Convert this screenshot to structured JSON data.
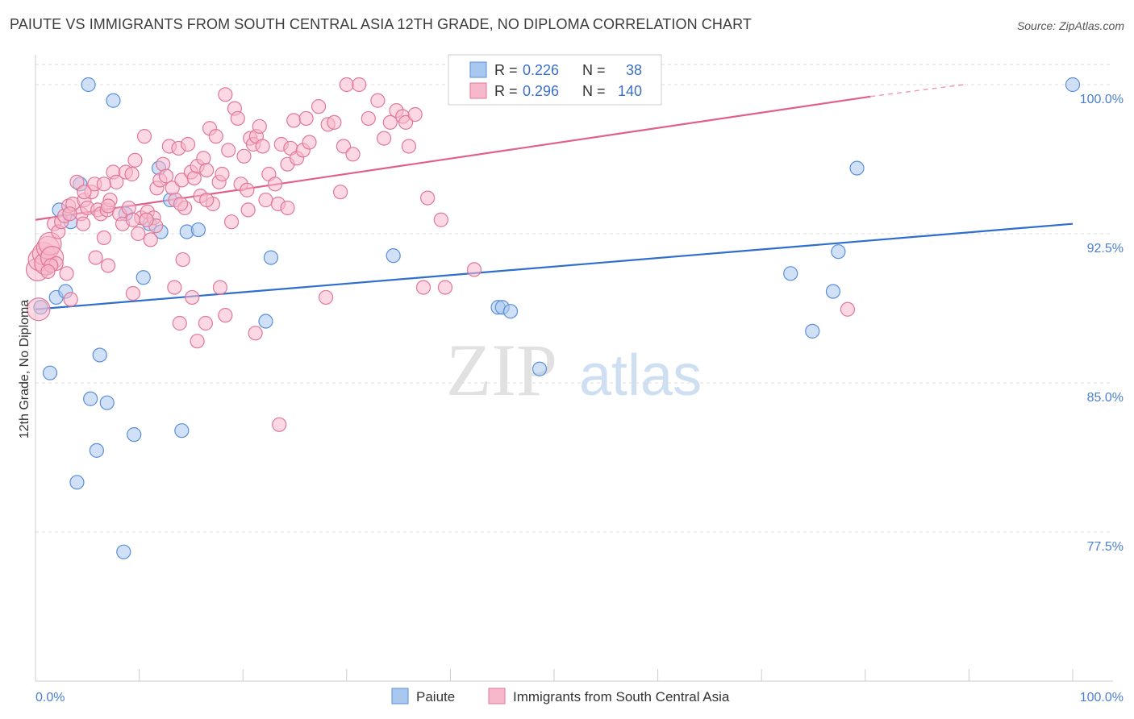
{
  "title": "PAIUTE VS IMMIGRANTS FROM SOUTH CENTRAL ASIA 12TH GRADE, NO DIPLOMA CORRELATION CHART",
  "source": "Source: ZipAtlas.com",
  "watermark": {
    "zip": "ZIP",
    "atlas": "atlas"
  },
  "legend": {
    "r_label": "R =",
    "n_label": "N =",
    "rows": [
      {
        "r": "0.226",
        "n": "38",
        "color": "#a9c8f0",
        "stroke": "#5b8fd6"
      },
      {
        "r": "0.296",
        "n": "140",
        "color": "#f8b8cc",
        "stroke": "#e07898"
      }
    ]
  },
  "bottom_legend": [
    "Paiute",
    "Immigrants from South Central Asia"
  ],
  "chart_data": {
    "type": "scatter",
    "title": "PAIUTE VS IMMIGRANTS FROM SOUTH CENTRAL ASIA 12TH GRADE, NO DIPLOMA CORRELATION CHART",
    "xlabel": "",
    "ylabel": "12th Grade, No Diploma",
    "xlim": [
      0,
      100
    ],
    "ylim": [
      70.0,
      101.5
    ],
    "x_tick_labels": [
      "0.0%",
      "100.0%"
    ],
    "y_ticks": [
      77.5,
      85.0,
      92.5,
      100.0
    ],
    "y_tick_labels": [
      "77.5%",
      "85.0%",
      "92.5%",
      "100.0%"
    ],
    "grid": true,
    "legend_position": "top-center",
    "series": [
      {
        "name": "Paiute",
        "color": "#a9c8f0",
        "stroke": "#5b8fd6",
        "line_color": "#2f6fcc",
        "trend": {
          "x": [
            0,
            100
          ],
          "y": [
            88.7,
            93.0
          ]
        },
        "points": [
          [
            0.5,
            88.8
          ],
          [
            2.3,
            93.7
          ],
          [
            3.4,
            93.1
          ],
          [
            5.1,
            100.0
          ],
          [
            7.5,
            99.2
          ],
          [
            4.3,
            95.0
          ],
          [
            2.0,
            89.3
          ],
          [
            2.9,
            89.6
          ],
          [
            1.4,
            85.5
          ],
          [
            6.2,
            86.4
          ],
          [
            5.3,
            84.2
          ],
          [
            6.9,
            84.0
          ],
          [
            9.5,
            82.4
          ],
          [
            14.1,
            82.6
          ],
          [
            5.9,
            81.6
          ],
          [
            4.0,
            80.0
          ],
          [
            8.5,
            76.5
          ],
          [
            8.7,
            93.5
          ],
          [
            11.9,
            95.8
          ],
          [
            13.0,
            94.2
          ],
          [
            11.0,
            93.0
          ],
          [
            12.1,
            92.6
          ],
          [
            14.6,
            92.6
          ],
          [
            15.7,
            92.7
          ],
          [
            10.4,
            90.3
          ],
          [
            22.7,
            91.3
          ],
          [
            22.2,
            88.1
          ],
          [
            34.5,
            91.4
          ],
          [
            44.6,
            88.8
          ],
          [
            45.0,
            88.8
          ],
          [
            45.8,
            88.6
          ],
          [
            48.6,
            85.7
          ],
          [
            72.8,
            90.5
          ],
          [
            74.9,
            87.6
          ],
          [
            76.9,
            89.6
          ],
          [
            77.4,
            91.6
          ],
          [
            79.2,
            95.8
          ],
          [
            100.0,
            100.0
          ]
        ]
      },
      {
        "name": "Immigrants from South Central Asia",
        "color": "#f8b8cc",
        "stroke": "#e07898",
        "line_color": "#e0608a",
        "trend": {
          "x": [
            0,
            80.5
          ],
          "y": [
            93.2,
            99.4
          ]
        },
        "trend_dashed": {
          "x": [
            80.5,
            89.5
          ],
          "y": [
            99.4,
            100.0
          ]
        },
        "points": [
          [
            0.2,
            90.7
          ],
          [
            0.4,
            91.2
          ],
          [
            0.8,
            91.5
          ],
          [
            1.0,
            91.0
          ],
          [
            1.2,
            91.8
          ],
          [
            1.4,
            92.0
          ],
          [
            1.6,
            91.3
          ],
          [
            0.3,
            88.7
          ],
          [
            1.8,
            93.0
          ],
          [
            2.2,
            92.6
          ],
          [
            2.5,
            93.1
          ],
          [
            2.8,
            93.4
          ],
          [
            3.2,
            93.9
          ],
          [
            3.6,
            94.0
          ],
          [
            4.0,
            95.1
          ],
          [
            4.4,
            93.5
          ],
          [
            4.7,
            94.2
          ],
          [
            5.0,
            93.8
          ],
          [
            5.4,
            94.6
          ],
          [
            5.7,
            95.0
          ],
          [
            6.0,
            93.7
          ],
          [
            6.3,
            93.5
          ],
          [
            6.6,
            92.3
          ],
          [
            6.9,
            93.7
          ],
          [
            7.2,
            94.2
          ],
          [
            7.5,
            95.6
          ],
          [
            7.8,
            95.1
          ],
          [
            8.1,
            93.5
          ],
          [
            8.4,
            93.0
          ],
          [
            8.7,
            95.6
          ],
          [
            9.0,
            93.8
          ],
          [
            9.3,
            95.5
          ],
          [
            9.6,
            96.2
          ],
          [
            9.9,
            92.5
          ],
          [
            10.2,
            93.3
          ],
          [
            10.5,
            97.4
          ],
          [
            10.8,
            93.6
          ],
          [
            11.1,
            92.2
          ],
          [
            11.4,
            93.3
          ],
          [
            11.7,
            94.8
          ],
          [
            12.0,
            95.2
          ],
          [
            12.3,
            96.0
          ],
          [
            12.6,
            95.4
          ],
          [
            12.9,
            96.9
          ],
          [
            13.2,
            94.8
          ],
          [
            13.5,
            94.2
          ],
          [
            13.8,
            96.8
          ],
          [
            14.1,
            95.2
          ],
          [
            14.4,
            93.8
          ],
          [
            14.7,
            97.0
          ],
          [
            15.0,
            95.6
          ],
          [
            15.3,
            95.3
          ],
          [
            15.6,
            95.9
          ],
          [
            15.9,
            94.4
          ],
          [
            16.2,
            96.3
          ],
          [
            16.5,
            95.7
          ],
          [
            16.8,
            97.8
          ],
          [
            17.1,
            94.0
          ],
          [
            17.4,
            97.4
          ],
          [
            17.7,
            95.1
          ],
          [
            18.0,
            95.5
          ],
          [
            18.3,
            99.5
          ],
          [
            18.6,
            96.7
          ],
          [
            18.9,
            93.1
          ],
          [
            19.2,
            98.8
          ],
          [
            19.5,
            98.3
          ],
          [
            19.8,
            95.0
          ],
          [
            20.1,
            96.4
          ],
          [
            20.4,
            94.7
          ],
          [
            20.7,
            97.3
          ],
          [
            21.0,
            97.0
          ],
          [
            21.3,
            97.4
          ],
          [
            21.6,
            97.9
          ],
          [
            21.9,
            96.9
          ],
          [
            22.2,
            94.2
          ],
          [
            22.5,
            95.5
          ],
          [
            23.1,
            95.0
          ],
          [
            23.4,
            94.0
          ],
          [
            23.7,
            97.0
          ],
          [
            24.3,
            96.0
          ],
          [
            24.6,
            96.8
          ],
          [
            24.9,
            98.2
          ],
          [
            25.2,
            96.3
          ],
          [
            25.8,
            96.7
          ],
          [
            26.1,
            98.3
          ],
          [
            26.4,
            97.1
          ],
          [
            27.3,
            98.9
          ],
          [
            28.2,
            98.0
          ],
          [
            28.8,
            98.1
          ],
          [
            29.4,
            94.6
          ],
          [
            29.7,
            96.9
          ],
          [
            30.0,
            100.0
          ],
          [
            30.6,
            96.5
          ],
          [
            31.2,
            100.0
          ],
          [
            32.1,
            98.3
          ],
          [
            33.0,
            99.2
          ],
          [
            33.6,
            97.3
          ],
          [
            34.2,
            98.1
          ],
          [
            34.8,
            98.7
          ],
          [
            35.4,
            98.4
          ],
          [
            35.7,
            98.1
          ],
          [
            36.0,
            96.9
          ],
          [
            36.6,
            98.5
          ],
          [
            37.8,
            94.3
          ],
          [
            39.1,
            93.2
          ],
          [
            2.0,
            91.0
          ],
          [
            3.0,
            90.5
          ],
          [
            1.5,
            90.9
          ],
          [
            4.6,
            93.0
          ],
          [
            6.6,
            95.0
          ],
          [
            7.0,
            93.9
          ],
          [
            9.4,
            93.2
          ],
          [
            11.6,
            92.9
          ],
          [
            14.0,
            94.0
          ],
          [
            16.5,
            94.2
          ],
          [
            20.5,
            93.7
          ],
          [
            24.3,
            93.8
          ],
          [
            14.2,
            91.2
          ],
          [
            18.3,
            88.4
          ],
          [
            21.2,
            87.5
          ],
          [
            13.9,
            88.0
          ],
          [
            15.1,
            89.3
          ],
          [
            17.8,
            89.8
          ],
          [
            13.4,
            89.8
          ],
          [
            16.4,
            88.0
          ],
          [
            28.0,
            89.3
          ],
          [
            37.4,
            89.8
          ],
          [
            39.5,
            89.8
          ],
          [
            42.3,
            90.7
          ],
          [
            78.3,
            88.7
          ],
          [
            23.5,
            82.9
          ],
          [
            9.4,
            89.5
          ],
          [
            5.8,
            91.3
          ],
          [
            7.0,
            90.9
          ],
          [
            10.7,
            93.2
          ],
          [
            3.4,
            89.2
          ],
          [
            1.2,
            90.6
          ],
          [
            15.6,
            87.1
          ],
          [
            3.3,
            93.5
          ],
          [
            4.7,
            94.6
          ]
        ]
      }
    ]
  }
}
